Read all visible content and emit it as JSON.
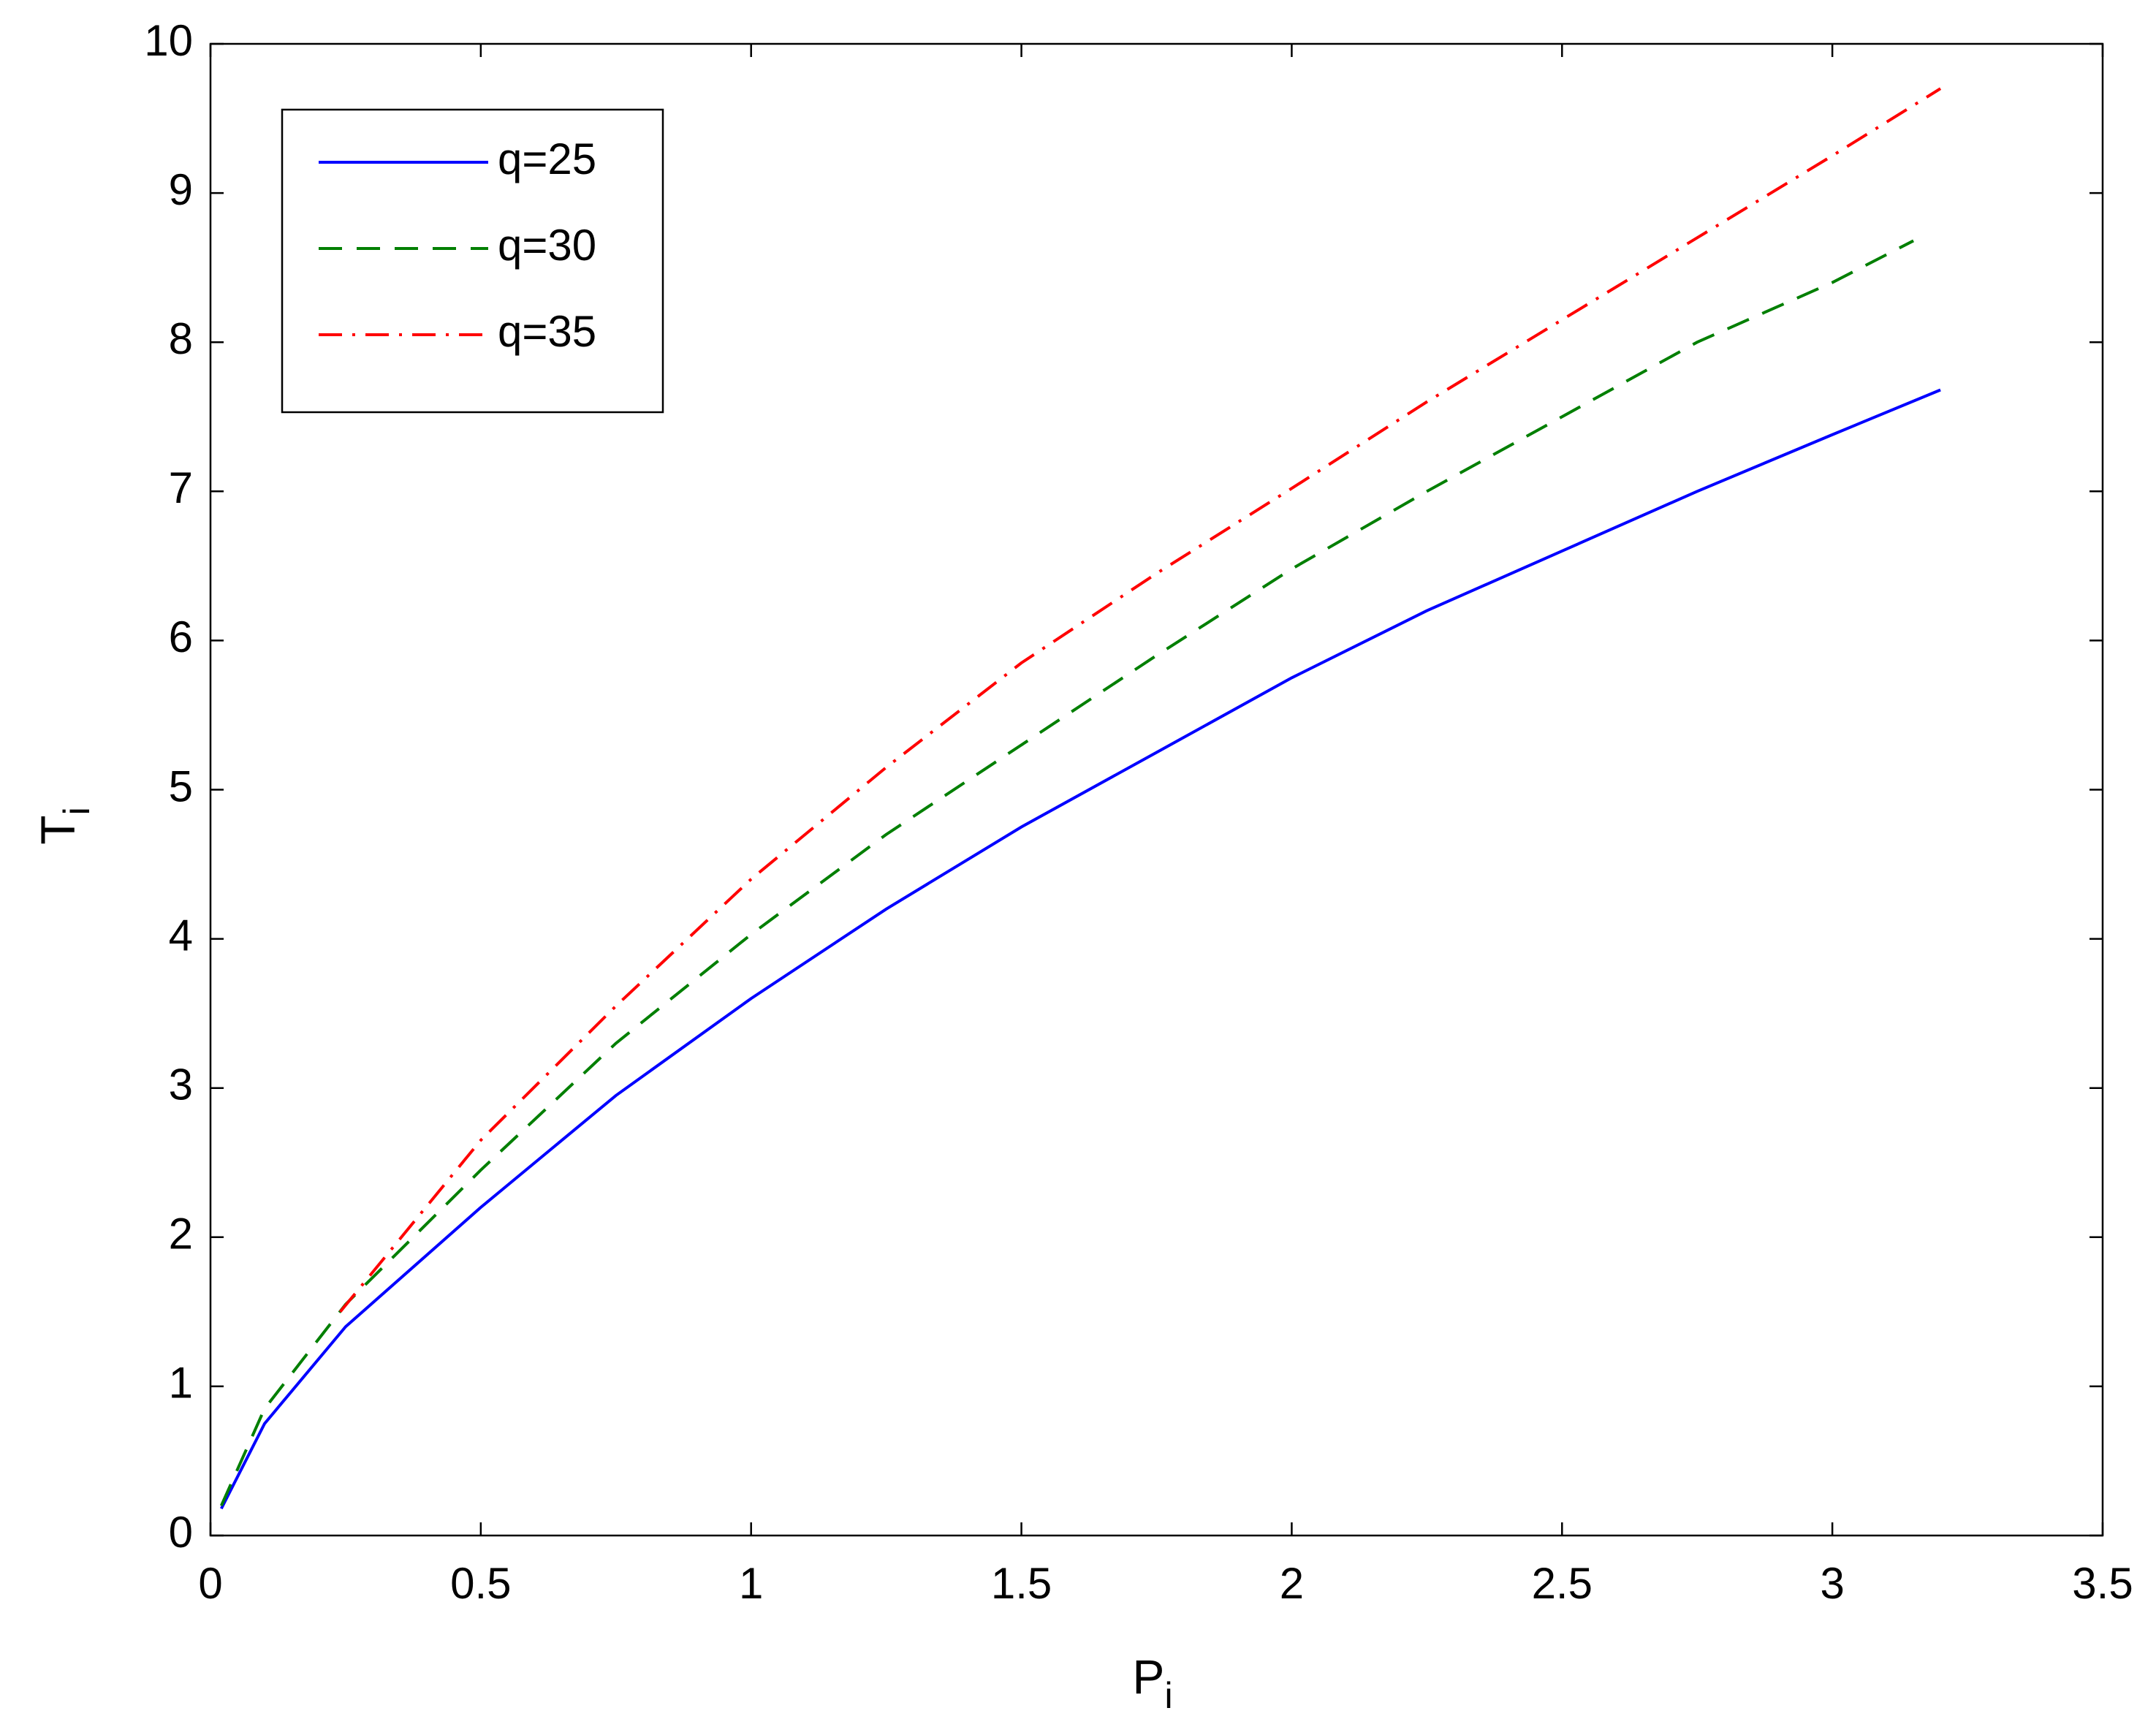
{
  "chart_data": {
    "type": "line",
    "xlabel": {
      "text": "P",
      "subscript": "i"
    },
    "ylabel": {
      "text": "T",
      "subscript": "i"
    },
    "xlim": [
      0,
      3.5
    ],
    "xticks": [
      0,
      0.5,
      1,
      1.5,
      2,
      2.5,
      3,
      3.5
    ],
    "ylim": [
      0,
      10
    ],
    "yticks": [
      0,
      1,
      2,
      3,
      4,
      5,
      6,
      7,
      8,
      9,
      10
    ],
    "grid": false,
    "legend": "upper-left",
    "series": [
      {
        "name": "q=25",
        "color": "#0000ff",
        "dash": "solid",
        "x": [
          0.02,
          0.1,
          0.25,
          0.5,
          0.75,
          1,
          1.25,
          1.5,
          1.75,
          2,
          2.25,
          2.5,
          2.75,
          3,
          3.2
        ],
        "values": [
          0.18,
          0.75,
          1.4,
          2.2,
          2.95,
          3.6,
          4.2,
          4.75,
          5.25,
          5.75,
          6.2,
          6.6,
          7.0,
          7.38,
          7.68
        ]
      },
      {
        "name": "q=30",
        "color": "#007f00",
        "dash": "dashed",
        "x": [
          0.02,
          0.1,
          0.25,
          0.5,
          0.75,
          1,
          1.25,
          1.5,
          1.75,
          2,
          2.25,
          2.5,
          2.75,
          3,
          3.15
        ],
        "values": [
          0.2,
          0.85,
          1.55,
          2.45,
          3.3,
          4.03,
          4.7,
          5.3,
          5.9,
          6.48,
          7.0,
          7.5,
          8.0,
          8.4,
          8.68
        ]
      },
      {
        "name": "q=35",
        "color": "#ff0000",
        "dash": "dashdot",
        "x": [
          0.24,
          0.5,
          0.75,
          1,
          1.25,
          1.5,
          1.75,
          2,
          2.25,
          2.5,
          2.75,
          3,
          3.2
        ],
        "values": [
          1.5,
          2.65,
          3.55,
          4.4,
          5.15,
          5.85,
          6.45,
          7.02,
          7.6,
          8.15,
          8.7,
          9.25,
          9.7
        ]
      }
    ]
  }
}
